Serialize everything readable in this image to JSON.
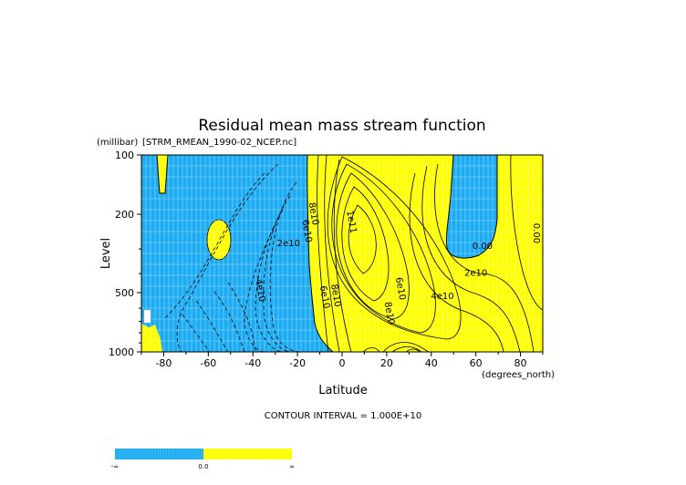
{
  "chart_data": {
    "type": "contour",
    "title": "Residual mean mass stream function",
    "subtitle": "[STRM_RMEAN_1990-02_NCEP.nc]",
    "xlabel": "Latitude",
    "x_units": "(degrees_north)",
    "ylabel": "Level",
    "y_units": "(millibar)",
    "xlim": [
      -90,
      90
    ],
    "ylim": [
      1000,
      100
    ],
    "y_scale": "log",
    "x_ticks": [
      -80,
      -60,
      -40,
      -20,
      0,
      20,
      40,
      60,
      80
    ],
    "y_ticks": [
      100,
      200,
      500,
      1000
    ],
    "grid": true,
    "contour_interval_note": "CONTOUR INTERVAL = 1.000E+10",
    "colors": {
      "negative": "#1aabf2",
      "positive": "#ffff00"
    },
    "legend": {
      "placement": "bottom-left",
      "labels": [
        "-∞",
        "0.0",
        "∞"
      ]
    },
    "contour_labels": [
      {
        "text": "1e11",
        "lon": 3,
        "lev": 220
      },
      {
        "text": "8e10",
        "lon": -14,
        "lev": 200
      },
      {
        "text": "6e10",
        "lon": -17,
        "lev": 245
      },
      {
        "text": "2e10",
        "lon": -24,
        "lev": 290
      },
      {
        "text": "-4e10",
        "lon": -38,
        "lev": 480
      },
      {
        "text": "0.00",
        "lon": 63,
        "lev": 300
      },
      {
        "text": "2e10",
        "lon": 60,
        "lev": 410
      },
      {
        "text": "4e10",
        "lon": 45,
        "lev": 540
      },
      {
        "text": "6e10",
        "lon": 25,
        "lev": 480
      },
      {
        "text": "8e10",
        "lon": 20,
        "lev": 640
      },
      {
        "text": "8e10",
        "lon": -4,
        "lev": 520
      },
      {
        "text": "6e10",
        "lon": -9,
        "lev": 530
      },
      {
        "text": "0.00",
        "lon": 86,
        "lev": 250
      }
    ]
  }
}
